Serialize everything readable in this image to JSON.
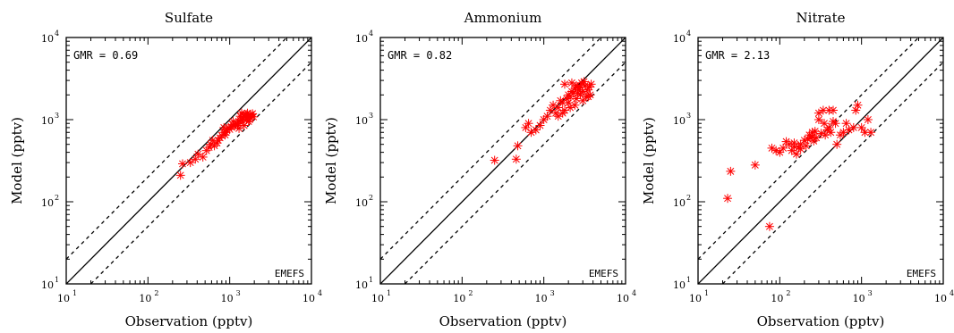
{
  "chart_data": [
    {
      "type": "scatter",
      "title": "Sulfate",
      "xlabel": "Observation (pptv)",
      "ylabel": "Model (pptv)",
      "xscale": "log",
      "yscale": "log",
      "xlim": [
        10,
        10000
      ],
      "ylim": [
        10,
        10000
      ],
      "tick_labels": [
        "10",
        "10",
        "10",
        "10"
      ],
      "tick_exponents": [
        "1",
        "2",
        "3",
        "4"
      ],
      "annotation": "GMR = 0.69",
      "source": "EMEFS",
      "marker": "asterisk",
      "marker_color": "#ff0000",
      "reference_lines": [
        "1:1 solid",
        "2:1 dashed",
        "1:2 dashed"
      ],
      "x": [
        250,
        265,
        330,
        380,
        410,
        470,
        520,
        560,
        590,
        620,
        650,
        700,
        720,
        760,
        800,
        850,
        880,
        920,
        960,
        1000,
        1050,
        1100,
        1150,
        1200,
        1250,
        1300,
        1350,
        1400,
        1450,
        1500,
        1550,
        1600,
        1650,
        1700,
        1800,
        1900,
        1300,
        1500,
        1700,
        1100,
        900,
        1400,
        1600,
        1800,
        1250,
        1350,
        1550,
        1750,
        1950,
        850
      ],
      "y": [
        210,
        290,
        300,
        330,
        380,
        350,
        420,
        460,
        500,
        560,
        480,
        520,
        560,
        600,
        640,
        700,
        650,
        750,
        800,
        760,
        820,
        860,
        830,
        880,
        900,
        950,
        980,
        1000,
        1050,
        1100,
        1080,
        1150,
        1200,
        1100,
        1150,
        1180,
        780,
        850,
        950,
        950,
        700,
        1200,
        1000,
        1050,
        850,
        1100,
        1150,
        1000,
        1080,
        800
      ]
    },
    {
      "type": "scatter",
      "title": "Ammonium",
      "xlabel": "Observation (pptv)",
      "ylabel": "Model (pptv)",
      "xscale": "log",
      "yscale": "log",
      "xlim": [
        10,
        10000
      ],
      "ylim": [
        10,
        10000
      ],
      "tick_labels": [
        "10",
        "10",
        "10",
        "10"
      ],
      "tick_exponents": [
        "1",
        "2",
        "3",
        "4"
      ],
      "annotation": "GMR = 0.82",
      "source": "EMEFS",
      "marker": "asterisk",
      "marker_color": "#ff0000",
      "reference_lines": [
        "1:1 solid",
        "2:1 dashed",
        "1:2 dashed"
      ],
      "x": [
        250,
        460,
        480,
        600,
        650,
        700,
        800,
        900,
        1000,
        1100,
        1200,
        1300,
        1400,
        1500,
        1600,
        1700,
        1800,
        1900,
        2000,
        2100,
        2200,
        2300,
        2400,
        2500,
        2600,
        2700,
        2800,
        2900,
        3000,
        3200,
        3400,
        3600,
        3800,
        2000,
        2500,
        3000,
        3500,
        1800,
        2200,
        2800,
        1500,
        2400,
        3300,
        2600,
        3100,
        2100,
        1700,
        3700
      ],
      "y": [
        320,
        330,
        480,
        800,
        900,
        700,
        750,
        850,
        1000,
        1100,
        1300,
        1500,
        1200,
        1400,
        1700,
        1600,
        1300,
        1800,
        2000,
        1900,
        2200,
        2100,
        2400,
        2600,
        2500,
        2300,
        2000,
        2800,
        2200,
        2600,
        2300,
        2500,
        2700,
        1600,
        1800,
        1700,
        1900,
        2700,
        2800,
        2500,
        1100,
        1500,
        1900,
        2100,
        2900,
        1400,
        1200,
        2000
      ]
    },
    {
      "type": "scatter",
      "title": "Nitrate",
      "xlabel": "Observation (pptv)",
      "ylabel": "Model (pptv)",
      "xscale": "log",
      "yscale": "log",
      "xlim": [
        10,
        10000
      ],
      "ylim": [
        10,
        10000
      ],
      "tick_labels": [
        "10",
        "10",
        "10",
        "10"
      ],
      "tick_exponents": [
        "1",
        "2",
        "3",
        "4"
      ],
      "annotation": "GMR = 2.13",
      "source": "EMEFS",
      "marker": "asterisk",
      "marker_color": "#ff0000",
      "reference_lines": [
        "1:1 solid",
        "2:1 dashed",
        "1:2 dashed"
      ],
      "x": [
        23,
        25,
        50,
        75,
        80,
        90,
        100,
        110,
        120,
        130,
        140,
        150,
        160,
        170,
        180,
        200,
        210,
        230,
        240,
        250,
        260,
        270,
        280,
        300,
        320,
        340,
        360,
        380,
        400,
        420,
        450,
        480,
        500,
        550,
        600,
        650,
        700,
        800,
        850,
        900,
        1000,
        1100,
        1200,
        1300,
        300,
        350,
        400,
        450,
        250,
        220,
        180,
        150
      ],
      "y": [
        110,
        235,
        280,
        50,
        450,
        420,
        400,
        450,
        540,
        500,
        420,
        470,
        380,
        460,
        500,
        560,
        480,
        650,
        600,
        700,
        550,
        720,
        600,
        1200,
        680,
        1300,
        650,
        750,
        1300,
        700,
        1300,
        900,
        500,
        650,
        700,
        900,
        750,
        800,
        1300,
        1500,
        800,
        700,
        1000,
        700,
        1000,
        900,
        800,
        950,
        620,
        580,
        440,
        520
      ]
    }
  ]
}
